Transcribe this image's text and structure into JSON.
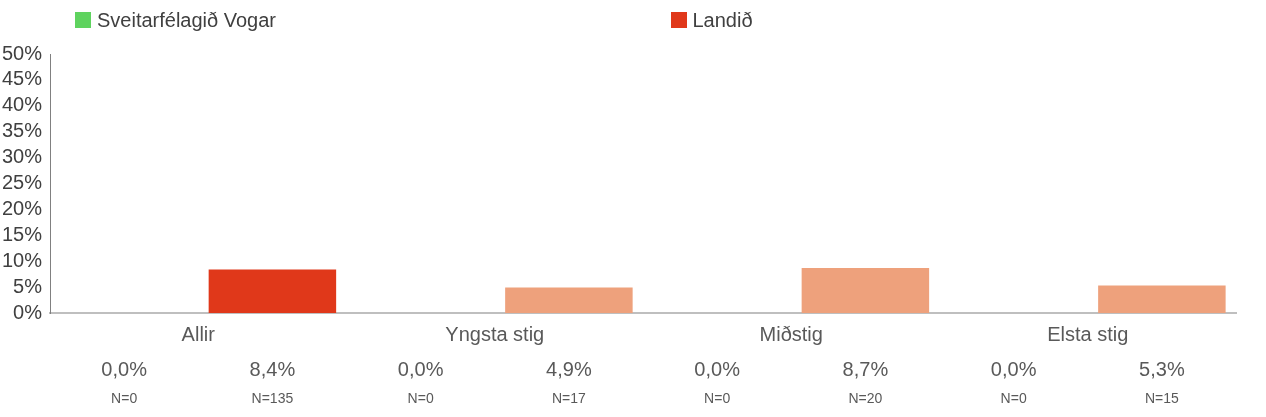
{
  "chart_data": {
    "type": "bar",
    "categories": [
      "Allir",
      "Yngsta stig",
      "Miðstig",
      "Elsta stig"
    ],
    "series": [
      {
        "name": "Sveitarfélagið Vogar",
        "color": "#5fd35f",
        "values": [
          0,
          0,
          0,
          0
        ],
        "value_labels": [
          "0,0%\nN=0",
          "0,0%\nN=0",
          "0,0%\nN=0",
          "0,0%\nN=0"
        ]
      },
      {
        "name": "Landið",
        "color": "#e0381a",
        "colors": [
          "#e0381a",
          "#eea17c",
          "#eea17c",
          "#eea17c"
        ],
        "values": [
          8.4,
          4.9,
          8.7,
          5.3
        ],
        "value_labels": [
          "8,4%\nN=135",
          "4,9%\nN=17",
          "8,7%\nN=20",
          "5,3%\nN=15"
        ]
      }
    ],
    "ylim": [
      0,
      50
    ],
    "yticks": [
      {
        "value": 0,
        "label": "0%"
      },
      {
        "value": 5,
        "label": "5%"
      },
      {
        "value": 10,
        "label": "10%"
      },
      {
        "value": 15,
        "label": "15%"
      },
      {
        "value": 20,
        "label": "20%"
      },
      {
        "value": 25,
        "label": "25%"
      },
      {
        "value": 30,
        "label": "30%"
      },
      {
        "value": 35,
        "label": "35%"
      },
      {
        "value": 40,
        "label": "40%"
      },
      {
        "value": 45,
        "label": "45%"
      },
      {
        "value": 50,
        "label": "50%"
      }
    ],
    "grid": false,
    "legend": "top"
  }
}
